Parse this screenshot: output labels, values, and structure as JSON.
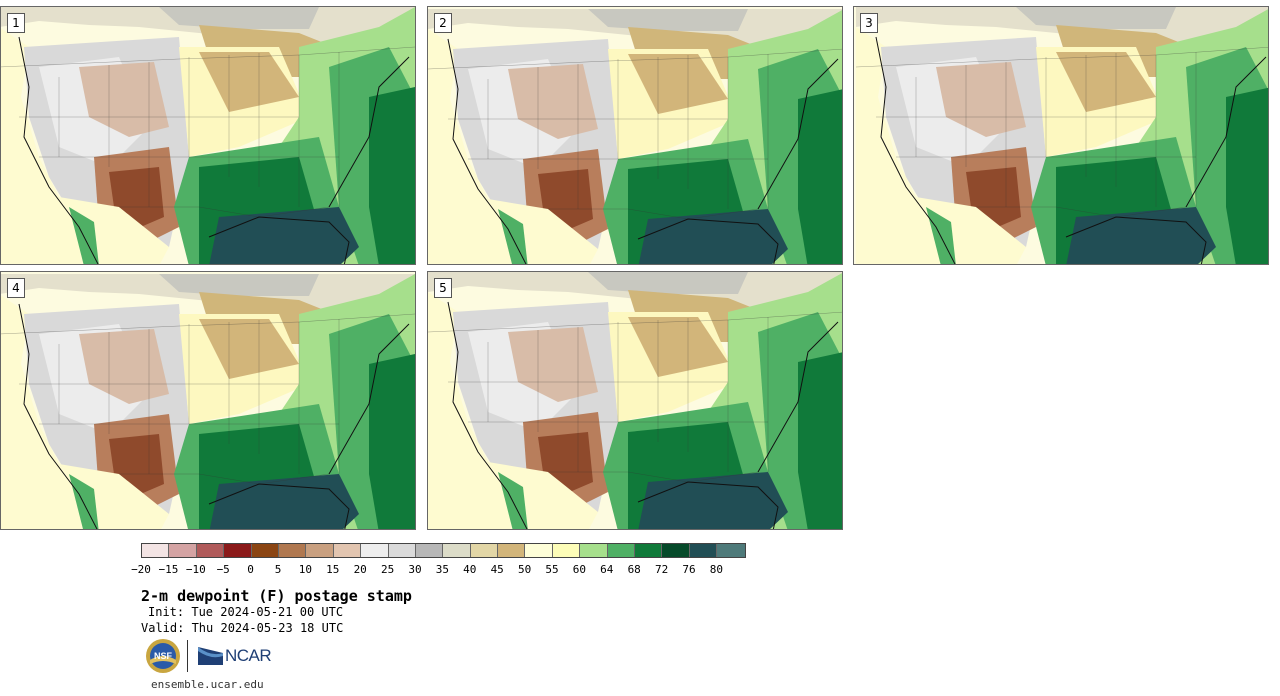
{
  "panels": [
    {
      "label": "1"
    },
    {
      "label": "2"
    },
    {
      "label": "3"
    },
    {
      "label": "4"
    },
    {
      "label": "5"
    }
  ],
  "colorbar": {
    "colors": [
      "#f3e4e4",
      "#d4a3a3",
      "#b05a5a",
      "#8b1a1a",
      "#8b4513",
      "#b07850",
      "#c9a080",
      "#e2c5b0",
      "#eeeeee",
      "#dadada",
      "#b7b7b7",
      "#dcdcc8",
      "#e2d6a6",
      "#d2b57a",
      "#fefed8",
      "#fdfdb8",
      "#a6df8c",
      "#4fb065",
      "#107a3a",
      "#064a2a",
      "#214e55",
      "#4e7a7a"
    ],
    "ticks": [
      "−20",
      "−15",
      "−10",
      "−5",
      "0",
      "5",
      "10",
      "15",
      "20",
      "25",
      "30",
      "35",
      "40",
      "45",
      "50",
      "55",
      "60",
      "64",
      "68",
      "72",
      "76",
      "80"
    ]
  },
  "title": "2-m dewpoint (F) postage stamp",
  "init": "Init: Tue 2024-05-21 00 UTC",
  "valid": "Valid: Thu 2024-05-23 18 UTC",
  "logos": {
    "nsf": "NSF",
    "ncar": "NCAR"
  },
  "website": "ensemble.ucar.edu"
}
